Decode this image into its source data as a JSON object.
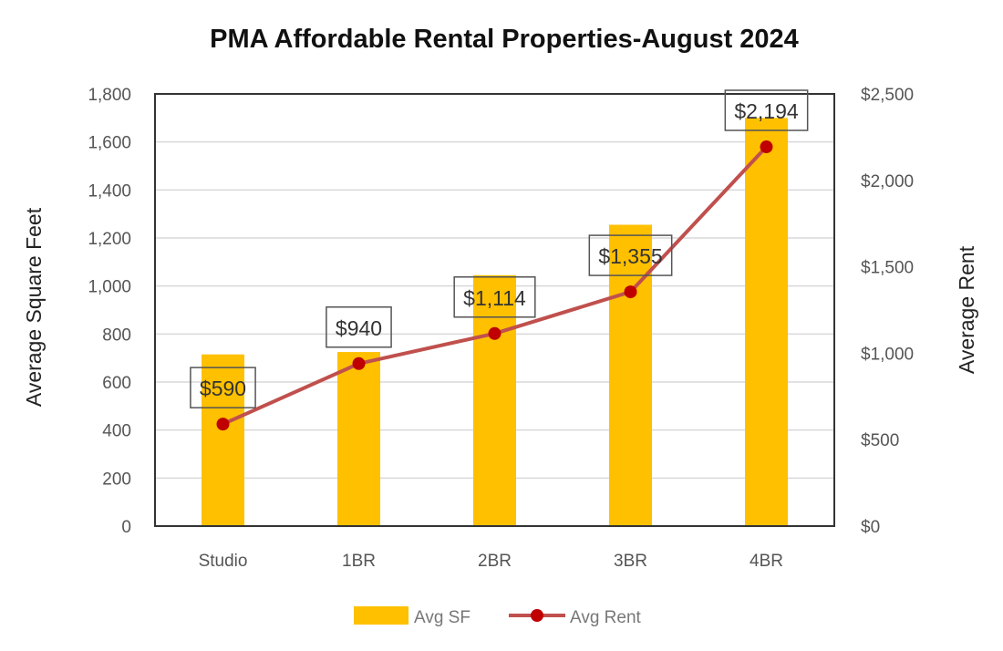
{
  "chart_data": {
    "type": "bar",
    "title": "PMA Affordable Rental Properties-August 2024",
    "categories": [
      "Studio",
      "1BR",
      "2BR",
      "3BR",
      "4BR"
    ],
    "ylabel": "Average Square Feet",
    "y2label": "Average Rent",
    "ylim": [
      0,
      1800
    ],
    "y2lim": [
      0,
      2500
    ],
    "yticks": [
      "0",
      "200",
      "400",
      "600",
      "800",
      "1,000",
      "1,200",
      "1,400",
      "1,600",
      "1,800"
    ],
    "y2ticks": [
      "$0",
      "$500",
      "$1,000",
      "$1,500",
      "$2,000",
      "$2,500"
    ],
    "grid": true,
    "legend_position": "bottom",
    "series": [
      {
        "name": "Avg SF",
        "type": "bar",
        "axis": "left",
        "color": "#FFC000",
        "values": [
          715,
          725,
          1045,
          1255,
          1700
        ]
      },
      {
        "name": "Avg Rent",
        "type": "line",
        "axis": "right",
        "color": "#C0504D",
        "marker_color": "#C00000",
        "values": [
          590,
          940,
          1114,
          1355,
          2194
        ],
        "data_labels": [
          "$590",
          "$940",
          "$1,114",
          "$1,355",
          "$2,194"
        ]
      }
    ]
  }
}
